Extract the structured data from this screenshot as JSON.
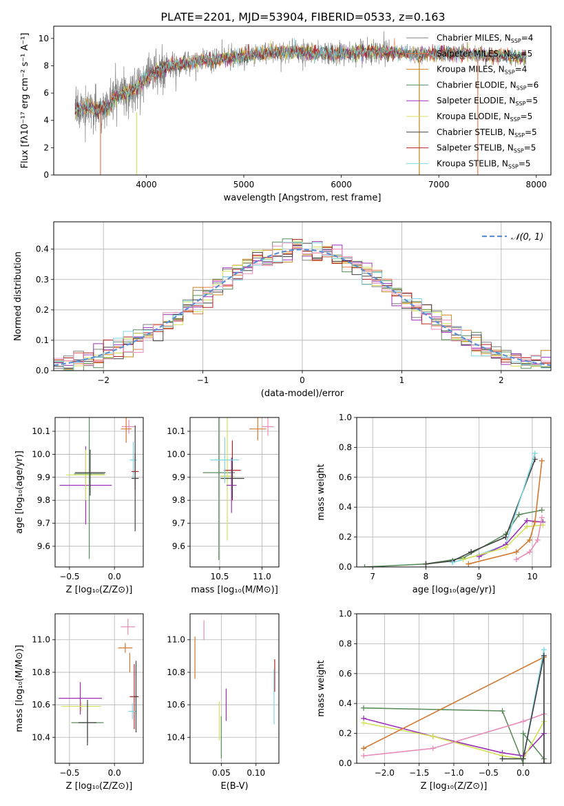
{
  "figure_title": "PLATE=2201, MJD=53904, FIBERID=0533, z=0.163",
  "colors": {
    "Chabrier MILES": "#7f7f7f",
    "Salpeter MILES": "#e8794a",
    "Kroupa MILES": "#c8841a",
    "Chabrier ELODIE": "#5b8c5b",
    "Salpeter ELODIE": "#9b30b8",
    "Kroupa ELODIE": "#d4e157",
    "Chabrier STELIB": "#404040",
    "Salpeter STELIB": "#b22222",
    "Kroupa STELIB": "#7fd6e0",
    "pink": "#e98cb8",
    "orange": "#d2772e",
    "gauss": "#5a8fd6"
  },
  "chart_data": [
    {
      "id": "spectrum",
      "type": "line",
      "title": "PLATE=2201, MJD=53904, FIBERID=0533, z=0.163",
      "xlabel": "wavelength [Angstrom, rest frame]",
      "ylabel": "Flux [fλ10⁻¹⁷ erg cm⁻² s⁻¹ A⁻¹]",
      "xlim": [
        3050,
        8150
      ],
      "ylim": [
        0,
        10.9
      ],
      "xticks": [
        4000,
        5000,
        6000,
        7000,
        8000
      ],
      "yticks": [
        0,
        2,
        4,
        6,
        8,
        10
      ],
      "grid": false,
      "legend_position": "top-right",
      "legend": [
        {
          "label": "Chabrier MILES, N",
          "sub": "SSP",
          "suffix": "=4",
          "color_key": "Chabrier MILES"
        },
        {
          "label": "Salpeter MILES, N",
          "sub": "SSP",
          "suffix": "=5",
          "color_key": "Salpeter MILES"
        },
        {
          "label": "Kroupa MILES, N",
          "sub": "SSP",
          "suffix": "=4",
          "color_key": "Kroupa MILES"
        },
        {
          "label": "Chabrier ELODIE, N",
          "sub": "SSP",
          "suffix": "=6",
          "color_key": "Chabrier ELODIE"
        },
        {
          "label": "Salpeter ELODIE, N",
          "sub": "SSP",
          "suffix": "=5",
          "color_key": "Salpeter ELODIE"
        },
        {
          "label": "Kroupa ELODIE, N",
          "sub": "SSP",
          "suffix": "=5",
          "color_key": "Kroupa ELODIE"
        },
        {
          "label": "Chabrier STELIB, N",
          "sub": "SSP",
          "suffix": "=5",
          "color_key": "Chabrier STELIB"
        },
        {
          "label": "Salpeter STELIB, N",
          "sub": "SSP",
          "suffix": "=5",
          "color_key": "Salpeter STELIB"
        },
        {
          "label": "Kroupa STELIB, N",
          "sub": "SSP",
          "suffix": "=5",
          "color_key": "Kroupa STELIB"
        }
      ],
      "model_continuum": {
        "x": [
          3270,
          3400,
          3500,
          3600,
          3700,
          3800,
          3900,
          4000,
          4200,
          4500,
          4800,
          5000,
          5300,
          5600,
          5900,
          6200,
          6500,
          6800,
          7100,
          7400,
          7700,
          7900
        ],
        "y": [
          4.7,
          5.0,
          4.8,
          4.9,
          5.8,
          6.0,
          6.4,
          7.1,
          8.0,
          8.3,
          8.5,
          8.7,
          9.0,
          9.0,
          8.9,
          9.0,
          9.0,
          8.8,
          8.9,
          8.8,
          8.7,
          8.6
        ]
      },
      "model_cutoffs": [
        {
          "color_key": "Salpeter MILES",
          "x": 3530,
          "dir": "start"
        },
        {
          "color_key": "Kroupa ELODIE",
          "x": 3900,
          "dir": "start"
        },
        {
          "color_key": "Kroupa MILES",
          "x": 6800,
          "dir": "end"
        },
        {
          "color_key": "Salpeter MILES",
          "x": 7400,
          "dir": "end"
        }
      ]
    },
    {
      "id": "residuals",
      "type": "bar",
      "xlabel": "(data-model)/error",
      "ylabel": "Normed distribution",
      "xlim": [
        -2.5,
        2.5
      ],
      "ylim": [
        0,
        0.49
      ],
      "xticks": [
        -2,
        -1,
        0,
        1,
        2
      ],
      "yticks": [
        0.0,
        0.1,
        0.2,
        0.3,
        0.4
      ],
      "grid": true,
      "legend_position": "top-right",
      "gauss_label": "𝒩(0, 1)",
      "gauss_color_key": "gauss",
      "bin_width": 0.1,
      "bin_start": -2.5
    },
    {
      "id": "age_vs_Z",
      "type": "scatter",
      "xlabel": "Z [log₁₀(Z/Z⊙)]",
      "ylabel": "age  [log₁₀(age/yr)]",
      "xlim": [
        -0.66,
        0.32
      ],
      "ylim": [
        9.51,
        10.16
      ],
      "xticks": [
        -0.5,
        0.0
      ],
      "yticks": [
        9.6,
        9.7,
        9.8,
        9.9,
        10.0,
        10.1
      ],
      "grid": true,
      "points": [
        {
          "color_key": "Salpeter ELODIE",
          "x": -0.32,
          "y": 9.865,
          "xerr": 0.29,
          "yerr": 0.17
        },
        {
          "color_key": "Kroupa ELODIE",
          "x": -0.32,
          "y": 9.91,
          "xerr": 0.22,
          "yerr": 0.11
        },
        {
          "color_key": "Chabrier ELODIE",
          "x": -0.28,
          "y": 9.915,
          "xerr": 0.17,
          "yerr": 0.37
        },
        {
          "color_key": "Chabrier STELIB",
          "x": -0.27,
          "y": 9.92,
          "xerr": 0.17,
          "yerr": 0.1
        },
        {
          "color_key": "pink",
          "x": 0.16,
          "y": 10.12,
          "xerr": 0.08,
          "yerr": 0.03
        },
        {
          "color_key": "orange",
          "x": 0.13,
          "y": 10.11,
          "xerr": 0.06,
          "yerr": 0.06
        },
        {
          "color_key": "Kroupa STELIB",
          "x": 0.21,
          "y": 9.975,
          "xerr": 0.04,
          "yerr": 0.08
        },
        {
          "color_key": "Salpeter STELIB",
          "x": 0.23,
          "y": 9.925,
          "xerr": 0.04,
          "yerr": 0.08
        },
        {
          "color_key": "Chabrier STELIB",
          "x": 0.23,
          "y": 9.895,
          "xerr": 0.04,
          "yerr": 0.23
        }
      ]
    },
    {
      "id": "age_vs_mass",
      "type": "scatter",
      "xlabel": "mass [log₁₀(M/M⊙)]",
      "ylabel": "",
      "xlim": [
        10.15,
        11.2
      ],
      "ylim": [
        9.51,
        10.16
      ],
      "xticks": [
        10.5,
        11.0
      ],
      "yticks": [
        9.6,
        9.7,
        9.8,
        9.9,
        10.0,
        10.1
      ],
      "grid": true,
      "points": [
        {
          "color_key": "Chabrier ELODIE",
          "x": 10.49,
          "y": 9.92,
          "xerr": 0.19,
          "yerr": 0.38
        },
        {
          "color_key": "Kroupa ELODIE",
          "x": 10.59,
          "y": 9.905,
          "xerr": 0.08,
          "yerr": 0.28
        },
        {
          "color_key": "Salpeter ELODIE",
          "x": 10.64,
          "y": 9.865,
          "xerr": 0.06,
          "yerr": 0.12
        },
        {
          "color_key": "Salpeter STELIB",
          "x": 10.65,
          "y": 9.93,
          "xerr": 0.1,
          "yerr": 0.13
        },
        {
          "color_key": "Chabrier STELIB",
          "x": 10.65,
          "y": 9.895,
          "xerr": 0.14,
          "yerr": 0.09
        },
        {
          "color_key": "Kroupa STELIB",
          "x": 10.56,
          "y": 9.975,
          "xerr": 0.17,
          "yerr": 0.1
        },
        {
          "color_key": "orange",
          "x": 10.95,
          "y": 10.11,
          "xerr": 0.1,
          "yerr": 0.05
        },
        {
          "color_key": "pink",
          "x": 11.07,
          "y": 10.12,
          "xerr": 0.07,
          "yerr": 0.04
        }
      ]
    },
    {
      "id": "massweight_vs_age",
      "type": "line",
      "xlabel": "age  [log₁₀(age/yr)]",
      "ylabel": "mass weight",
      "xlim": [
        6.7,
        10.35
      ],
      "ylim": [
        0,
        1.0
      ],
      "xticks": [
        7,
        8,
        9,
        10
      ],
      "yticks": [
        0.0,
        0.2,
        0.4,
        0.6,
        0.8,
        1.0
      ],
      "grid": true,
      "series": [
        {
          "color_key": "Chabrier ELODIE",
          "x": [
            6.85,
            8.0,
            8.7,
            9.5,
            9.75,
            10.18
          ],
          "y": [
            0.0,
            0.02,
            0.06,
            0.22,
            0.35,
            0.38
          ]
        },
        {
          "color_key": "Chabrier STELIB",
          "x": [
            8.0,
            8.5,
            8.85,
            9.5,
            10.05
          ],
          "y": [
            0.02,
            0.04,
            0.1,
            0.2,
            0.72
          ]
        },
        {
          "color_key": "Kroupa STELIB",
          "x": [
            8.5,
            9.0,
            9.5,
            10.05
          ],
          "y": [
            0.03,
            0.08,
            0.15,
            0.76
          ]
        },
        {
          "color_key": "Salpeter ELODIE",
          "x": [
            9.0,
            9.5,
            9.9,
            10.2
          ],
          "y": [
            0.07,
            0.15,
            0.31,
            0.3
          ]
        },
        {
          "color_key": "Kroupa ELODIE",
          "x": [
            8.7,
            9.5,
            9.9,
            10.2
          ],
          "y": [
            0.05,
            0.13,
            0.27,
            0.28
          ]
        },
        {
          "color_key": "orange",
          "x": [
            8.8,
            9.7,
            9.95,
            10.05,
            10.18
          ],
          "y": [
            0.02,
            0.1,
            0.18,
            0.3,
            0.71
          ]
        },
        {
          "color_key": "pink",
          "x": [
            9.7,
            9.95,
            10.1,
            10.18
          ],
          "y": [
            0.05,
            0.1,
            0.18,
            0.33
          ]
        }
      ]
    },
    {
      "id": "mass_vs_Z",
      "type": "scatter",
      "xlabel": "Z [log₁₀(Z/Z⊙)]",
      "ylabel": "mass [log₁₀(M/M⊙)]",
      "xlim": [
        -0.66,
        0.32
      ],
      "ylim": [
        10.24,
        11.16
      ],
      "xticks": [
        -0.5,
        0.0
      ],
      "yticks": [
        10.4,
        10.6,
        10.8,
        11.0
      ],
      "grid": true,
      "points": [
        {
          "color_key": "Salpeter ELODIE",
          "x": -0.38,
          "y": 10.64,
          "xerr": 0.24,
          "yerr": 0.1
        },
        {
          "color_key": "Kroupa ELODIE",
          "x": -0.37,
          "y": 10.59,
          "xerr": 0.22,
          "yerr": 0.03
        },
        {
          "color_key": "Chabrier ELODIE",
          "x": -0.3,
          "y": 10.49,
          "xerr": 0.18,
          "yerr": 0.12
        },
        {
          "color_key": "Chabrier STELIB",
          "x": -0.3,
          "y": 10.49,
          "xerr": 0.1,
          "yerr": 0.14
        },
        {
          "color_key": "pink",
          "x": 0.15,
          "y": 11.08,
          "xerr": 0.08,
          "yerr": 0.05
        },
        {
          "color_key": "Salpeter STELIB",
          "x": 0.22,
          "y": 10.65,
          "xerr": 0.05,
          "yerr": 0.2
        },
        {
          "color_key": "orange",
          "x": 0.12,
          "y": 10.95,
          "xerr": 0.08,
          "yerr": 0.03
        },
        {
          "color_key": "Kroupa STELIB",
          "x": 0.2,
          "y": 10.56,
          "xerr": 0.05,
          "yerr": 0.05
        },
        {
          "color_key": "Chabrier STELIB",
          "x": 0.24,
          "y": 10.65,
          "xerr": 0.02,
          "yerr": 0.22
        },
        {
          "color_key": "orange",
          "x": 0.17,
          "y": 10.86,
          "xerr": 0.0,
          "yerr": 0.06
        }
      ]
    },
    {
      "id": "mass_vs_EBV",
      "type": "scatter",
      "xlabel": "E(B-V)",
      "ylabel": "",
      "xlim": [
        0.005,
        0.133
      ],
      "ylim": [
        10.24,
        11.16
      ],
      "xticks": [
        0.05,
        0.1
      ],
      "yticks": [
        10.4,
        10.6,
        10.8,
        11.0
      ],
      "grid": true,
      "points": [
        {
          "color_key": "orange",
          "x": 0.012,
          "y": 10.89,
          "xerr": 0.0,
          "yerr": 0.13
        },
        {
          "color_key": "pink",
          "x": 0.025,
          "y": 11.06,
          "xerr": 0.0,
          "yerr": 0.06
        },
        {
          "color_key": "Kroupa ELODIE",
          "x": 0.047,
          "y": 10.5,
          "xerr": 0.0,
          "yerr": 0.12
        },
        {
          "color_key": "Chabrier ELODIE",
          "x": 0.05,
          "y": 10.4,
          "xerr": 0.0,
          "yerr": 0.13
        },
        {
          "color_key": "Salpeter ELODIE",
          "x": 0.057,
          "y": 10.6,
          "xerr": 0.0,
          "yerr": 0.1
        },
        {
          "color_key": "Salpeter STELIB",
          "x": 0.127,
          "y": 10.78,
          "xerr": 0.0,
          "yerr": 0.1
        },
        {
          "color_key": "Kroupa STELIB",
          "x": 0.126,
          "y": 10.65,
          "xerr": 0.0,
          "yerr": 0.17
        }
      ]
    },
    {
      "id": "massweight_vs_Z",
      "type": "line",
      "xlabel": "Z [log₁₀(Z/Z⊙)]",
      "ylabel": "mass weight",
      "xlim": [
        -2.4,
        0.4
      ],
      "ylim": [
        0,
        1.0
      ],
      "xticks": [
        -2.0,
        -1.5,
        -1.0,
        -0.5,
        0.0
      ],
      "yticks": [
        0.0,
        0.2,
        0.4,
        0.6,
        0.8,
        1.0
      ],
      "grid": true,
      "series": [
        {
          "color_key": "Chabrier ELODIE",
          "x": [
            -2.3,
            -0.3,
            0.0,
            0.0,
            0.3
          ],
          "y": [
            0.37,
            0.35,
            0.0,
            0.2,
            0.03
          ]
        },
        {
          "color_key": "Salpeter ELODIE",
          "x": [
            -2.3,
            -1.3,
            -0.3,
            0.0,
            0.3
          ],
          "y": [
            0.3,
            0.18,
            0.07,
            0.05,
            0.2
          ]
        },
        {
          "color_key": "Kroupa ELODIE",
          "x": [
            -2.3,
            -1.3,
            -0.3,
            0.0,
            0.3
          ],
          "y": [
            0.27,
            0.18,
            0.05,
            0.03,
            0.28
          ]
        },
        {
          "color_key": "pink",
          "x": [
            -2.3,
            -1.3,
            0.0,
            0.3
          ],
          "y": [
            0.05,
            0.1,
            0.28,
            0.33
          ]
        },
        {
          "color_key": "orange",
          "x": [
            -2.3,
            0.3,
            0.3
          ],
          "y": [
            0.1,
            0.71,
            0.0
          ]
        },
        {
          "color_key": "Kroupa STELIB",
          "x": [
            -0.3,
            0.0,
            0.3,
            0.3
          ],
          "y": [
            0.03,
            0.03,
            0.76,
            0.0
          ]
        },
        {
          "color_key": "Chabrier STELIB",
          "x": [
            -0.3,
            0.0,
            0.3,
            0.3
          ],
          "y": [
            0.03,
            0.03,
            0.72,
            0.0
          ]
        }
      ]
    }
  ]
}
